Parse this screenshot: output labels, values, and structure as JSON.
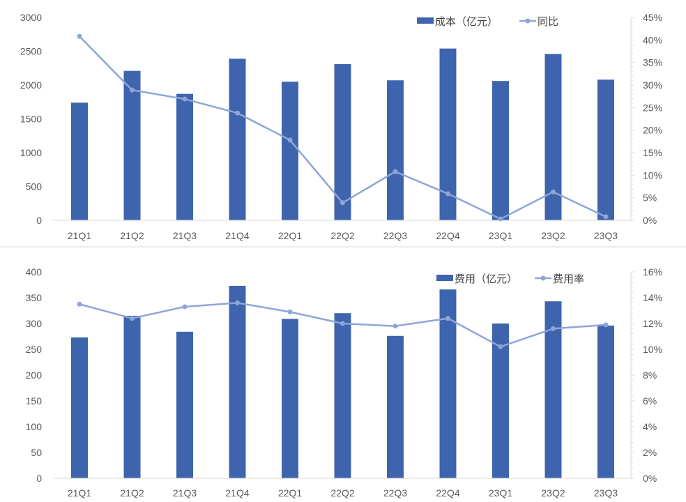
{
  "colors": {
    "bar": "#3F64AE",
    "line": "#8EA5D8",
    "axis": "#D9D9D9",
    "text": "#595959"
  },
  "chart_data": [
    {
      "type": "bar",
      "title": "",
      "categories": [
        "21Q1",
        "21Q2",
        "21Q3",
        "21Q4",
        "22Q1",
        "22Q2",
        "22Q3",
        "22Q4",
        "23Q1",
        "23Q2",
        "23Q3"
      ],
      "series": [
        {
          "name": "成本（亿元）",
          "type": "bar",
          "axis": "left",
          "values": [
            1740,
            2210,
            1870,
            2390,
            2050,
            2310,
            2070,
            2540,
            2060,
            2460,
            2080
          ]
        },
        {
          "name": "同比",
          "type": "line",
          "axis": "right",
          "values": [
            40.8,
            28.9,
            26.9,
            23.8,
            17.8,
            3.9,
            10.8,
            5.9,
            0.3,
            6.3,
            0.8
          ]
        }
      ],
      "ylim": [
        0,
        3000
      ],
      "yticks": [
        0,
        500,
        1000,
        1500,
        2000,
        2500,
        3000
      ],
      "y2lim": [
        0,
        45
      ],
      "y2ticks": [
        "0%",
        "5%",
        "10%",
        "15%",
        "20%",
        "25%",
        "30%",
        "35%",
        "40%",
        "45%"
      ],
      "legend": "top-right"
    },
    {
      "type": "bar",
      "title": "",
      "categories": [
        "21Q1",
        "21Q2",
        "21Q3",
        "21Q4",
        "22Q1",
        "22Q2",
        "22Q3",
        "22Q4",
        "23Q1",
        "23Q2",
        "23Q3"
      ],
      "series": [
        {
          "name": "费用（亿元）",
          "type": "bar",
          "axis": "left",
          "values": [
            273,
            315,
            284,
            373,
            309,
            320,
            276,
            366,
            300,
            343,
            296
          ]
        },
        {
          "name": "费用率",
          "type": "line",
          "axis": "right",
          "values": [
            13.5,
            12.4,
            13.3,
            13.6,
            12.9,
            12.0,
            11.8,
            12.4,
            10.2,
            11.6,
            11.9
          ]
        }
      ],
      "ylim": [
        0,
        400
      ],
      "yticks": [
        0,
        50,
        100,
        150,
        200,
        250,
        300,
        350,
        400
      ],
      "y2lim": [
        0,
        16
      ],
      "y2ticks": [
        "0%",
        "2%",
        "4%",
        "6%",
        "8%",
        "10%",
        "12%",
        "14%",
        "16%"
      ],
      "legend": "top-right"
    }
  ]
}
